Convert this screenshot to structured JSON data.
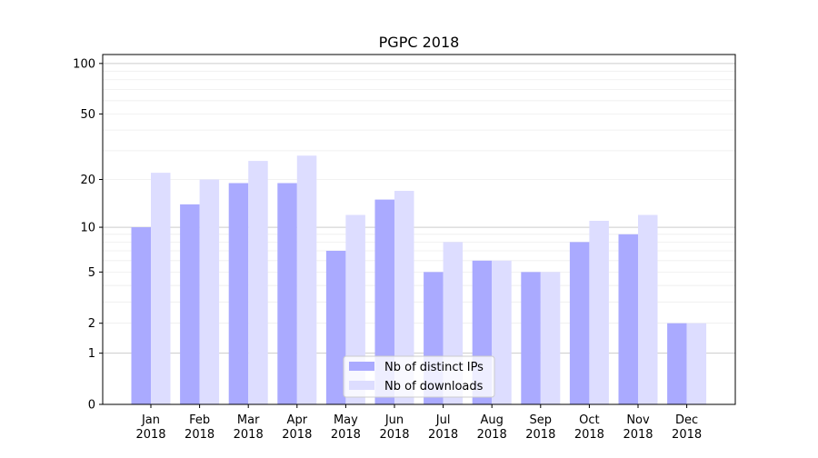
{
  "chart_data": {
    "type": "bar",
    "title": "PGPC 2018",
    "xlabel": "",
    "ylabel": "",
    "yscale": "symlog (log10(1+y))",
    "ylim": [
      0,
      113
    ],
    "yticks": [
      0,
      1,
      2,
      5,
      10,
      20,
      50,
      100
    ],
    "grid": true,
    "legend_position": "bottom-center",
    "categories": [
      "Jan\n2018",
      "Feb\n2018",
      "Mar\n2018",
      "Apr\n2018",
      "May\n2018",
      "Jun\n2018",
      "Jul\n2018",
      "Aug\n2018",
      "Sep\n2018",
      "Oct\n2018",
      "Nov\n2018",
      "Dec\n2018"
    ],
    "series": [
      {
        "name": "Nb of distinct IPs",
        "color": "#aaaaff",
        "values": [
          10,
          14,
          19,
          19,
          7,
          15,
          5,
          6,
          5,
          8,
          9,
          2
        ]
      },
      {
        "name": "Nb of downloads",
        "color": "#ddddff",
        "values": [
          22,
          20,
          26,
          28,
          12,
          17,
          8,
          6,
          5,
          11,
          12,
          2
        ]
      }
    ]
  }
}
